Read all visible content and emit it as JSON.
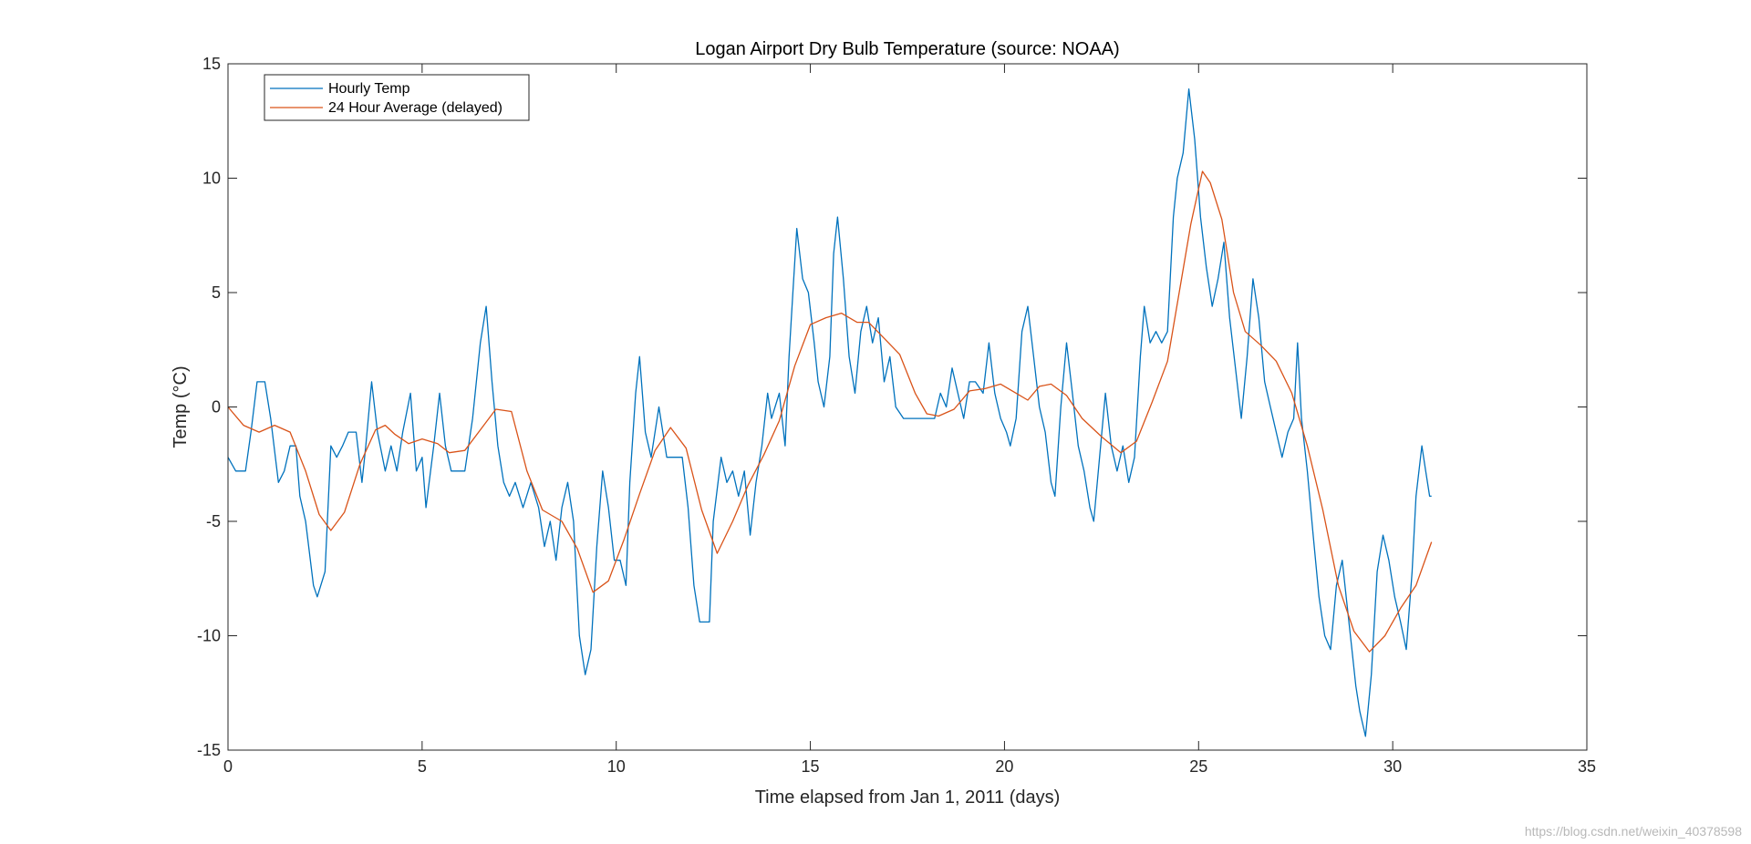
{
  "chart_data": {
    "type": "line",
    "title": "Logan Airport Dry Bulb Temperature (source: NOAA)",
    "xlabel": "Time elapsed from Jan 1, 2011 (days)",
    "ylabel": "Temp (°C)",
    "xlim": [
      0,
      35
    ],
    "ylim": [
      -15,
      15
    ],
    "xticks": [
      0,
      5,
      10,
      15,
      20,
      25,
      30,
      35
    ],
    "yticks": [
      -15,
      -10,
      -5,
      0,
      5,
      10,
      15
    ],
    "xtick_labels": [
      "0",
      "5",
      "10",
      "15",
      "20",
      "25",
      "30",
      "35"
    ],
    "ytick_labels": [
      "-15",
      "-10",
      "-5",
      "0",
      "5",
      "10",
      "15"
    ],
    "legend_position": "top-left",
    "series": [
      {
        "name": "Hourly Temp",
        "color": "#0072BD",
        "points": [
          [
            0,
            -2.2
          ],
          [
            0.2,
            -2.8
          ],
          [
            0.45,
            -2.8
          ],
          [
            0.6,
            -1
          ],
          [
            0.75,
            1.1
          ],
          [
            0.95,
            1.1
          ],
          [
            1.1,
            -0.5
          ],
          [
            1.3,
            -3.3
          ],
          [
            1.45,
            -2.8
          ],
          [
            1.6,
            -1.7
          ],
          [
            1.75,
            -1.7
          ],
          [
            1.85,
            -3.9
          ],
          [
            2.0,
            -5.0
          ],
          [
            2.2,
            -7.8
          ],
          [
            2.3,
            -8.3
          ],
          [
            2.5,
            -7.2
          ],
          [
            2.65,
            -1.7
          ],
          [
            2.8,
            -2.2
          ],
          [
            2.95,
            -1.7
          ],
          [
            3.1,
            -1.1
          ],
          [
            3.3,
            -1.1
          ],
          [
            3.45,
            -3.3
          ],
          [
            3.55,
            -1.7
          ],
          [
            3.7,
            1.1
          ],
          [
            3.85,
            -1.1
          ],
          [
            4.05,
            -2.8
          ],
          [
            4.2,
            -1.7
          ],
          [
            4.35,
            -2.8
          ],
          [
            4.5,
            -1.1
          ],
          [
            4.7,
            0.6
          ],
          [
            4.85,
            -2.8
          ],
          [
            5.0,
            -2.2
          ],
          [
            5.1,
            -4.4
          ],
          [
            5.3,
            -1.7
          ],
          [
            5.45,
            0.6
          ],
          [
            5.6,
            -1.7
          ],
          [
            5.75,
            -2.8
          ],
          [
            6.1,
            -2.8
          ],
          [
            6.3,
            -0.5
          ],
          [
            6.5,
            2.8
          ],
          [
            6.65,
            4.4
          ],
          [
            6.8,
            1.1
          ],
          [
            6.95,
            -1.7
          ],
          [
            7.1,
            -3.3
          ],
          [
            7.25,
            -3.9
          ],
          [
            7.4,
            -3.3
          ],
          [
            7.6,
            -4.4
          ],
          [
            7.8,
            -3.3
          ],
          [
            8.0,
            -4.4
          ],
          [
            8.15,
            -6.1
          ],
          [
            8.3,
            -5.0
          ],
          [
            8.45,
            -6.7
          ],
          [
            8.6,
            -4.4
          ],
          [
            8.75,
            -3.3
          ],
          [
            8.9,
            -5.0
          ],
          [
            9.05,
            -10.0
          ],
          [
            9.2,
            -11.7
          ],
          [
            9.35,
            -10.6
          ],
          [
            9.5,
            -6.1
          ],
          [
            9.65,
            -2.8
          ],
          [
            9.8,
            -4.4
          ],
          [
            9.95,
            -6.7
          ],
          [
            10.1,
            -6.7
          ],
          [
            10.25,
            -7.8
          ],
          [
            10.35,
            -3.3
          ],
          [
            10.5,
            0.6
          ],
          [
            10.6,
            2.2
          ],
          [
            10.75,
            -1.1
          ],
          [
            10.9,
            -2.2
          ],
          [
            11.1,
            0.0
          ],
          [
            11.3,
            -2.2
          ],
          [
            11.5,
            -2.2
          ],
          [
            11.7,
            -2.2
          ],
          [
            11.85,
            -4.4
          ],
          [
            12.0,
            -7.8
          ],
          [
            12.15,
            -9.4
          ],
          [
            12.4,
            -9.4
          ],
          [
            12.5,
            -5.0
          ],
          [
            12.7,
            -2.2
          ],
          [
            12.85,
            -3.3
          ],
          [
            13.0,
            -2.8
          ],
          [
            13.15,
            -3.9
          ],
          [
            13.3,
            -2.8
          ],
          [
            13.45,
            -5.6
          ],
          [
            13.6,
            -3.3
          ],
          [
            13.75,
            -1.7
          ],
          [
            13.9,
            0.6
          ],
          [
            14.0,
            -0.5
          ],
          [
            14.2,
            0.6
          ],
          [
            14.35,
            -1.7
          ],
          [
            14.45,
            2.2
          ],
          [
            14.55,
            5.0
          ],
          [
            14.65,
            7.8
          ],
          [
            14.8,
            5.6
          ],
          [
            14.95,
            5.0
          ],
          [
            15.1,
            2.8
          ],
          [
            15.2,
            1.1
          ],
          [
            15.35,
            0.0
          ],
          [
            15.5,
            2.2
          ],
          [
            15.6,
            6.7
          ],
          [
            15.7,
            8.3
          ],
          [
            15.85,
            5.6
          ],
          [
            16.0,
            2.2
          ],
          [
            16.15,
            0.6
          ],
          [
            16.3,
            3.3
          ],
          [
            16.45,
            4.4
          ],
          [
            16.6,
            2.8
          ],
          [
            16.75,
            3.9
          ],
          [
            16.9,
            1.1
          ],
          [
            17.05,
            2.2
          ],
          [
            17.2,
            0.0
          ],
          [
            17.4,
            -0.5
          ],
          [
            17.55,
            -0.5
          ],
          [
            17.8,
            -0.5
          ],
          [
            18.0,
            -0.5
          ],
          [
            18.2,
            -0.5
          ],
          [
            18.35,
            0.6
          ],
          [
            18.5,
            0.0
          ],
          [
            18.65,
            1.7
          ],
          [
            18.8,
            0.6
          ],
          [
            18.95,
            -0.5
          ],
          [
            19.1,
            1.1
          ],
          [
            19.25,
            1.1
          ],
          [
            19.45,
            0.6
          ],
          [
            19.6,
            2.8
          ],
          [
            19.75,
            0.6
          ],
          [
            19.9,
            -0.5
          ],
          [
            20.05,
            -1.1
          ],
          [
            20.15,
            -1.7
          ],
          [
            20.3,
            -0.5
          ],
          [
            20.45,
            3.3
          ],
          [
            20.6,
            4.4
          ],
          [
            20.75,
            2.2
          ],
          [
            20.9,
            0.0
          ],
          [
            21.05,
            -1.1
          ],
          [
            21.2,
            -3.3
          ],
          [
            21.3,
            -3.9
          ],
          [
            21.45,
            0.0
          ],
          [
            21.6,
            2.8
          ],
          [
            21.75,
            0.6
          ],
          [
            21.9,
            -1.7
          ],
          [
            22.05,
            -2.8
          ],
          [
            22.2,
            -4.4
          ],
          [
            22.3,
            -5.0
          ],
          [
            22.45,
            -2.2
          ],
          [
            22.6,
            0.6
          ],
          [
            22.75,
            -1.7
          ],
          [
            22.9,
            -2.8
          ],
          [
            23.05,
            -1.7
          ],
          [
            23.2,
            -3.3
          ],
          [
            23.35,
            -2.2
          ],
          [
            23.5,
            2.2
          ],
          [
            23.6,
            4.4
          ],
          [
            23.75,
            2.8
          ],
          [
            23.9,
            3.3
          ],
          [
            24.05,
            2.8
          ],
          [
            24.2,
            3.3
          ],
          [
            24.35,
            8.3
          ],
          [
            24.45,
            10.0
          ],
          [
            24.6,
            11.1
          ],
          [
            24.75,
            13.9
          ],
          [
            24.9,
            11.7
          ],
          [
            25.05,
            8.3
          ],
          [
            25.2,
            6.1
          ],
          [
            25.35,
            4.4
          ],
          [
            25.5,
            5.6
          ],
          [
            25.65,
            7.2
          ],
          [
            25.8,
            3.9
          ],
          [
            25.95,
            1.7
          ],
          [
            26.1,
            -0.5
          ],
          [
            26.25,
            2.2
          ],
          [
            26.4,
            5.6
          ],
          [
            26.55,
            3.9
          ],
          [
            26.7,
            1.1
          ],
          [
            26.85,
            0.0
          ],
          [
            27.0,
            -1.1
          ],
          [
            27.15,
            -2.2
          ],
          [
            27.3,
            -1.1
          ],
          [
            27.45,
            -0.5
          ],
          [
            27.55,
            2.8
          ],
          [
            27.65,
            -0.5
          ],
          [
            27.8,
            -2.8
          ],
          [
            27.95,
            -5.6
          ],
          [
            28.1,
            -8.3
          ],
          [
            28.25,
            -10.0
          ],
          [
            28.4,
            -10.6
          ],
          [
            28.55,
            -7.8
          ],
          [
            28.7,
            -6.7
          ],
          [
            28.8,
            -8.3
          ],
          [
            28.95,
            -10.6
          ],
          [
            29.05,
            -12.2
          ],
          [
            29.15,
            -13.3
          ],
          [
            29.3,
            -14.4
          ],
          [
            29.45,
            -11.7
          ],
          [
            29.6,
            -7.2
          ],
          [
            29.75,
            -5.6
          ],
          [
            29.9,
            -6.7
          ],
          [
            30.05,
            -8.3
          ],
          [
            30.2,
            -9.4
          ],
          [
            30.35,
            -10.6
          ],
          [
            30.5,
            -7.2
          ],
          [
            30.6,
            -3.9
          ],
          [
            30.75,
            -1.7
          ],
          [
            30.85,
            -2.8
          ],
          [
            30.95,
            -3.9
          ],
          [
            31.0,
            -3.9
          ]
        ]
      },
      {
        "name": "24 Hour Average (delayed)",
        "color": "#D95319",
        "points": [
          [
            0,
            0.0
          ],
          [
            0.4,
            -0.8
          ],
          [
            0.8,
            -1.1
          ],
          [
            1.2,
            -0.8
          ],
          [
            1.6,
            -1.1
          ],
          [
            2.0,
            -2.8
          ],
          [
            2.35,
            -4.7
          ],
          [
            2.65,
            -5.4
          ],
          [
            3.0,
            -4.6
          ],
          [
            3.4,
            -2.5
          ],
          [
            3.8,
            -1.0
          ],
          [
            4.05,
            -0.8
          ],
          [
            4.3,
            -1.2
          ],
          [
            4.65,
            -1.6
          ],
          [
            5.0,
            -1.4
          ],
          [
            5.4,
            -1.6
          ],
          [
            5.7,
            -2.0
          ],
          [
            6.1,
            -1.9
          ],
          [
            6.5,
            -1.0
          ],
          [
            6.9,
            -0.1
          ],
          [
            7.3,
            -0.2
          ],
          [
            7.7,
            -2.8
          ],
          [
            8.1,
            -4.5
          ],
          [
            8.6,
            -5.0
          ],
          [
            9.0,
            -6.2
          ],
          [
            9.4,
            -8.1
          ],
          [
            9.8,
            -7.6
          ],
          [
            10.2,
            -5.8
          ],
          [
            10.6,
            -3.8
          ],
          [
            11.0,
            -1.9
          ],
          [
            11.4,
            -0.9
          ],
          [
            11.8,
            -1.8
          ],
          [
            12.2,
            -4.5
          ],
          [
            12.6,
            -6.4
          ],
          [
            13.0,
            -5.0
          ],
          [
            13.4,
            -3.4
          ],
          [
            13.8,
            -2.1
          ],
          [
            14.2,
            -0.6
          ],
          [
            14.6,
            1.8
          ],
          [
            15.0,
            3.6
          ],
          [
            15.4,
            3.9
          ],
          [
            15.8,
            4.1
          ],
          [
            16.2,
            3.7
          ],
          [
            16.5,
            3.7
          ],
          [
            16.9,
            3.0
          ],
          [
            17.3,
            2.3
          ],
          [
            17.7,
            0.6
          ],
          [
            18.0,
            -0.3
          ],
          [
            18.3,
            -0.4
          ],
          [
            18.7,
            -0.1
          ],
          [
            19.1,
            0.7
          ],
          [
            19.5,
            0.8
          ],
          [
            19.9,
            1.0
          ],
          [
            20.3,
            0.6
          ],
          [
            20.6,
            0.3
          ],
          [
            20.9,
            0.9
          ],
          [
            21.2,
            1.0
          ],
          [
            21.6,
            0.5
          ],
          [
            22.0,
            -0.5
          ],
          [
            22.5,
            -1.3
          ],
          [
            23.0,
            -2.0
          ],
          [
            23.4,
            -1.5
          ],
          [
            23.8,
            0.2
          ],
          [
            24.2,
            2.0
          ],
          [
            24.5,
            5.0
          ],
          [
            24.8,
            8.0
          ],
          [
            25.1,
            10.3
          ],
          [
            25.3,
            9.8
          ],
          [
            25.6,
            8.2
          ],
          [
            25.9,
            5.0
          ],
          [
            26.2,
            3.3
          ],
          [
            26.6,
            2.7
          ],
          [
            27.0,
            2.0
          ],
          [
            27.4,
            0.6
          ],
          [
            27.8,
            -1.7
          ],
          [
            28.2,
            -4.5
          ],
          [
            28.6,
            -7.8
          ],
          [
            29.0,
            -9.8
          ],
          [
            29.4,
            -10.7
          ],
          [
            29.8,
            -10.0
          ],
          [
            30.2,
            -8.8
          ],
          [
            30.6,
            -7.8
          ],
          [
            31.0,
            -5.9
          ]
        ]
      }
    ]
  },
  "watermark": "https://blog.csdn.net/weixin_40378598"
}
